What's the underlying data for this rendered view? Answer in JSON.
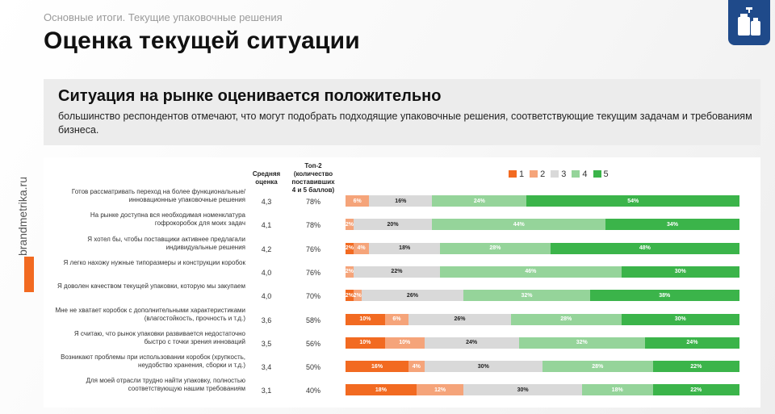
{
  "breadcrumb": "Основные итоги. Текущие упаковочные решения",
  "title": "Оценка текущей ситуации",
  "panel": {
    "heading": "Ситуация на рынке оценивается положительно",
    "text": "большинство респондентов отмечают, что могут подобрать подходящие упаковочные решения, соответствующие текущим задачам и требованиям бизнеса."
  },
  "brand": "brandmetrika.ru",
  "logo_icon": "bottles-icon",
  "colors": {
    "logo_bg": "#1f4a8a",
    "accent": "#f26a21"
  },
  "chart_data": {
    "type": "bar",
    "stacked": true,
    "columns": {
      "avg": "Средняя оценка",
      "top2": "Топ-2 (количество поставивших 4 и 5 баллов)"
    },
    "legend": {
      "position": "top-right",
      "items": [
        {
          "label": "1",
          "color": "#f26a21"
        },
        {
          "label": "2",
          "color": "#f5a47a"
        },
        {
          "label": "3",
          "color": "#d9d9d9"
        },
        {
          "label": "4",
          "color": "#95d49a"
        },
        {
          "label": "5",
          "color": "#3bb44a"
        }
      ]
    },
    "rows": [
      {
        "label": "Готов рассматривать переход на более функциональные/инновационные упаковочные решения",
        "avg": "4,3",
        "top2": "78%",
        "values": [
          0,
          6,
          16,
          24,
          54
        ],
        "labels": [
          "",
          "6%",
          "16%",
          "24%",
          "54%"
        ]
      },
      {
        "label": "На рынке доступна вся необходимая номенклатура гофрокоробок для моих задач",
        "avg": "4,1",
        "top2": "78%",
        "values": [
          0,
          2,
          20,
          44,
          34
        ],
        "labels": [
          "",
          "2%",
          "20%",
          "44%",
          "34%"
        ]
      },
      {
        "label": "Я хотел бы, чтобы поставщики активнее предлагали индивидуальные решения",
        "avg": "4,2",
        "top2": "76%",
        "values": [
          2,
          4,
          18,
          28,
          48
        ],
        "labels": [
          "2%",
          "4%",
          "18%",
          "28%",
          "48%"
        ]
      },
      {
        "label": "Я легко нахожу нужные типоразмеры и конструкции коробок",
        "avg": "4,0",
        "top2": "76%",
        "values": [
          0,
          2,
          22,
          46,
          30
        ],
        "labels": [
          "",
          "2%",
          "22%",
          "46%",
          "30%"
        ]
      },
      {
        "label": "Я доволен качеством текущей упаковки, которую мы закупаем",
        "avg": "4,0",
        "top2": "70%",
        "values": [
          2,
          2,
          26,
          32,
          38
        ],
        "labels": [
          "2%",
          "2%",
          "26%",
          "32%",
          "38%"
        ]
      },
      {
        "label": "Мне не хватает коробок с дополнительными характеристиками (влагостойкость, прочность и т.д.)",
        "avg": "3,6",
        "top2": "58%",
        "values": [
          10,
          6,
          26,
          28,
          30
        ],
        "labels": [
          "10%",
          "6%",
          "26%",
          "28%",
          "30%"
        ]
      },
      {
        "label": "Я считаю, что рынок упаковки развивается недостаточно быстро с точки зрения инноваций",
        "avg": "3,5",
        "top2": "56%",
        "values": [
          10,
          10,
          24,
          32,
          24
        ],
        "labels": [
          "10%",
          "10%",
          "24%",
          "32%",
          "24%"
        ]
      },
      {
        "label": "Возникают проблемы при использовании коробок (хрупкость, неудобство хранения, сборки и т.д.)",
        "avg": "3,4",
        "top2": "50%",
        "values": [
          16,
          4,
          30,
          28,
          22
        ],
        "labels": [
          "16%",
          "4%",
          "30%",
          "28%",
          "22%"
        ]
      },
      {
        "label": "Для моей отрасли трудно найти упаковку, полностью соответствующую нашим требованиям",
        "avg": "3,1",
        "top2": "40%",
        "values": [
          18,
          12,
          30,
          18,
          22
        ],
        "labels": [
          "18%",
          "12%",
          "30%",
          "18%",
          "22%"
        ]
      }
    ]
  }
}
